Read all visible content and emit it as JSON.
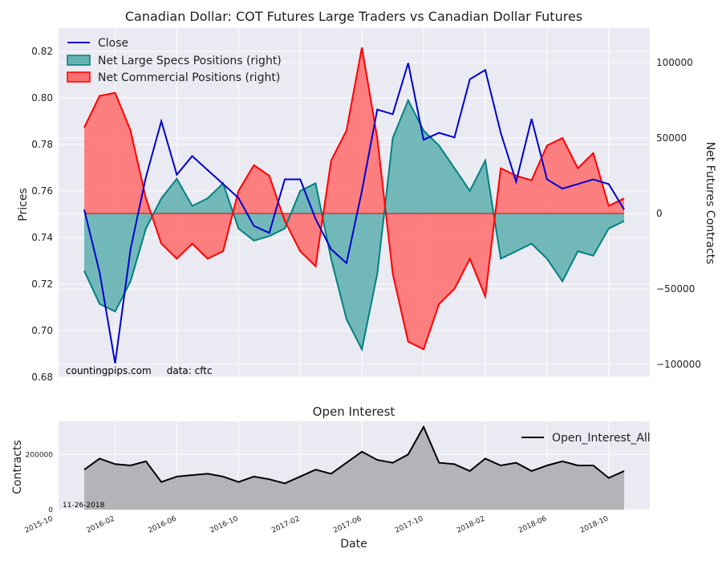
{
  "chart_data": [
    {
      "type": "area",
      "title": "Canadian Dollar: COT Futures Large Traders vs Canadian Dollar Futures",
      "xlabel": "",
      "ylabel": "Prices",
      "y2label": "Net Futures Contracts",
      "ylim": [
        0.68,
        0.83
      ],
      "y2lim": [
        -110000,
        120000
      ],
      "yticks": [
        "0.68",
        "0.70",
        "0.72",
        "0.74",
        "0.76",
        "0.78",
        "0.80",
        "0.82"
      ],
      "y2ticks": [
        "−100000",
        "−50000",
        "0",
        "50000",
        "100000"
      ],
      "y2tick_values": [
        -100000,
        -50000,
        0,
        50000,
        100000
      ],
      "legend_position": "top-left",
      "watermark": "countingpips.com     data: cftc",
      "x": [
        "2015-12",
        "2016-01",
        "2016-02",
        "2016-03",
        "2016-04",
        "2016-05",
        "2016-06",
        "2016-07",
        "2016-08",
        "2016-09",
        "2016-10",
        "2016-11",
        "2016-12",
        "2017-01",
        "2017-02",
        "2017-03",
        "2017-04",
        "2017-05",
        "2017-06",
        "2017-07",
        "2017-08",
        "2017-09",
        "2017-10",
        "2017-11",
        "2017-12",
        "2018-01",
        "2018-02",
        "2018-03",
        "2018-04",
        "2018-05",
        "2018-06",
        "2018-07",
        "2018-08",
        "2018-09",
        "2018-10",
        "2018-11"
      ],
      "series": [
        {
          "name": "Close",
          "axis": "left",
          "color": "#0000cc",
          "values": [
            0.752,
            0.725,
            0.686,
            0.735,
            0.766,
            0.79,
            0.767,
            0.775,
            0.769,
            0.763,
            0.757,
            0.745,
            0.742,
            0.765,
            0.765,
            0.748,
            0.735,
            0.729,
            0.76,
            0.795,
            0.793,
            0.815,
            0.782,
            0.785,
            0.783,
            0.808,
            0.812,
            0.785,
            0.764,
            0.791,
            0.765,
            0.761,
            0.763,
            0.765,
            0.763,
            0.752
          ]
        },
        {
          "name": "Net Large Specs Positions (right)",
          "axis": "right",
          "color": "#008080",
          "values": [
            -38000,
            -60000,
            -65000,
            -45000,
            -10000,
            10000,
            23000,
            5000,
            10000,
            20000,
            -10000,
            -18000,
            -15000,
            -10000,
            15000,
            20000,
            -30000,
            -70000,
            -90000,
            -40000,
            50000,
            75000,
            55000,
            45000,
            30000,
            15000,
            35000,
            -30000,
            -25000,
            -20000,
            -30000,
            -45000,
            -25000,
            -28000,
            -10000,
            -5000
          ]
        },
        {
          "name": "Net Commercial Positions (right)",
          "axis": "right",
          "color": "#ff0000",
          "values": [
            57000,
            78000,
            80000,
            55000,
            10000,
            -20000,
            -30000,
            -20000,
            -30000,
            -25000,
            15000,
            32000,
            25000,
            -5000,
            -25000,
            -35000,
            35000,
            55000,
            110000,
            50000,
            -40000,
            -85000,
            -90000,
            -60000,
            -50000,
            -30000,
            -55000,
            30000,
            25000,
            22000,
            45000,
            50000,
            30000,
            40000,
            5000,
            10000
          ]
        }
      ]
    },
    {
      "type": "area",
      "title": "Open Interest",
      "xlabel": "Date",
      "ylabel": "Contracts",
      "ylim": [
        0,
        320000
      ],
      "yticks": [
        "0",
        "200000"
      ],
      "ytick_values": [
        0,
        200000
      ],
      "xticks": [
        "2015-10",
        "2016-02",
        "2016-06",
        "2016-10",
        "2017-02",
        "2017-06",
        "2017-10",
        "2018-02",
        "2018-06",
        "2018-10"
      ],
      "date_label": "11-26-2018",
      "legend_position": "top-right",
      "x": [
        "2015-12",
        "2016-01",
        "2016-02",
        "2016-03",
        "2016-04",
        "2016-05",
        "2016-06",
        "2016-07",
        "2016-08",
        "2016-09",
        "2016-10",
        "2016-11",
        "2016-12",
        "2017-01",
        "2017-02",
        "2017-03",
        "2017-04",
        "2017-05",
        "2017-06",
        "2017-07",
        "2017-08",
        "2017-09",
        "2017-10",
        "2017-11",
        "2017-12",
        "2018-01",
        "2018-02",
        "2018-03",
        "2018-04",
        "2018-05",
        "2018-06",
        "2018-07",
        "2018-08",
        "2018-09",
        "2018-10",
        "2018-11"
      ],
      "series": [
        {
          "name": "Open_Interest_All",
          "color": "#000000",
          "values": [
            145000,
            185000,
            165000,
            160000,
            175000,
            100000,
            120000,
            125000,
            130000,
            120000,
            100000,
            120000,
            110000,
            95000,
            120000,
            145000,
            130000,
            170000,
            210000,
            180000,
            170000,
            200000,
            300000,
            170000,
            165000,
            140000,
            185000,
            160000,
            170000,
            140000,
            160000,
            175000,
            160000,
            160000,
            115000,
            140000
          ]
        }
      ]
    }
  ]
}
